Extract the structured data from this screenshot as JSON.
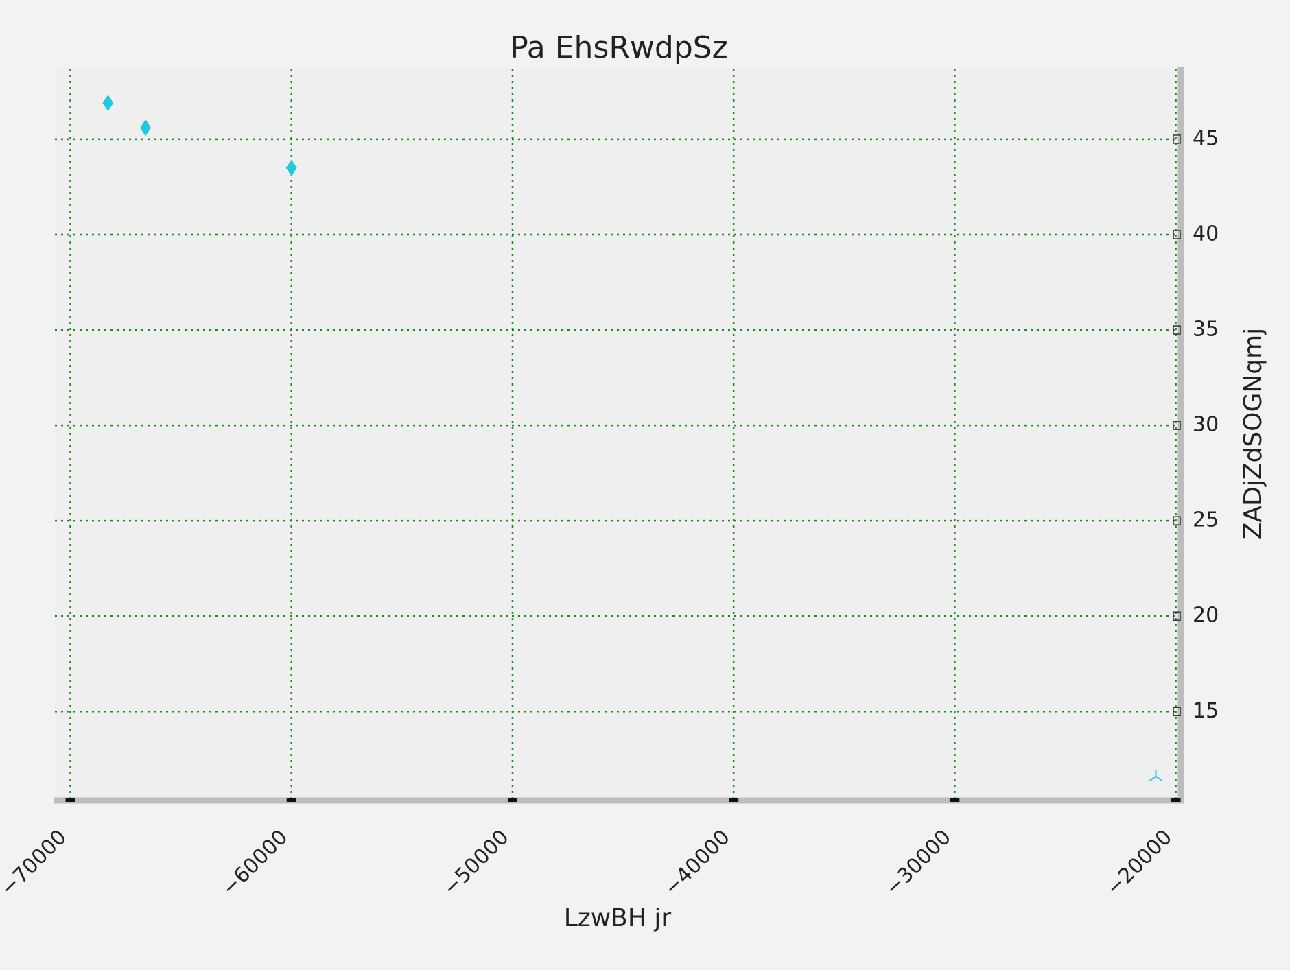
{
  "chart_data": {
    "type": "scatter",
    "title": "Pa  EhsRwdpSz",
    "xlabel": "LzwBH jr",
    "ylabel": "ZADjZdSOGNqmj",
    "xlim": [
      -70700,
      -19800
    ],
    "ylim": [
      10.3,
      48.7
    ],
    "x_ticks": [
      -70000,
      -60000,
      -50000,
      -40000,
      -30000,
      -20000
    ],
    "x_tick_labels": [
      "−70000",
      "−60000",
      "−50000",
      "−40000",
      "−30000",
      "−20000"
    ],
    "y_ticks": [
      15,
      20,
      25,
      30,
      35,
      40,
      45
    ],
    "y_tick_labels": [
      "15",
      "20",
      "25",
      "30",
      "35",
      "40",
      "45"
    ],
    "y_axis_position": "right",
    "grid": true,
    "grid_style": "dotted",
    "grid_color": "#1a8a1a",
    "background": "#efefef",
    "marker_color": "#22c8dc",
    "series": [
      {
        "marker": "thin-diamond",
        "points": [
          {
            "x": -68300,
            "y": 46.9
          },
          {
            "x": -66600,
            "y": 45.6
          },
          {
            "x": -60000,
            "y": 43.5
          }
        ]
      },
      {
        "marker": "tri-down",
        "points": [
          {
            "x": -20900,
            "y": 11.6
          }
        ]
      }
    ]
  }
}
